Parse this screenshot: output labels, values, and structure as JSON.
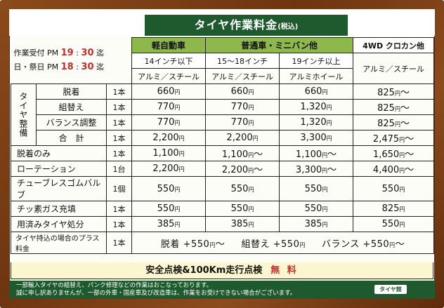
{
  "title": "タイヤ作業料金",
  "title_tax": "(税込)",
  "hours": {
    "weekday_prefix": "作業受付 PM ",
    "weekday_h": "19",
    "weekday_sep": " : ",
    "weekday_m": "30",
    "weekday_suffix": " 迄",
    "holiday_prefix": "日・祭日 PM ",
    "holiday_h": "18",
    "holiday_sep": " : ",
    "holiday_m": "30",
    "holiday_suffix": " 迄"
  },
  "columns": {
    "kei": "軽自動車",
    "futsu": "普通車・ミニバン他",
    "wd": "4WD クロカン他",
    "size_kei": "14インチ以下",
    "size_mid": "15～18インチ",
    "size_big": "19インチ以上",
    "mat_kei": "アルミ／スチール",
    "mat_mid": "アルミ／スチール",
    "mat_big": "アルミホイール",
    "mat_wd": "アルミ／スチール"
  },
  "group_label": "タイヤ整備",
  "yen": "円",
  "tilde": "～",
  "rows": [
    {
      "label": "脱着",
      "unit": "1本",
      "v": [
        "660",
        "660",
        "660",
        "825"
      ],
      "t": [
        "",
        "",
        "",
        "～"
      ]
    },
    {
      "label": "組替え",
      "unit": "1本",
      "v": [
        "770",
        "770",
        "1,320",
        "825"
      ],
      "t": [
        "",
        "",
        "",
        "～"
      ]
    },
    {
      "label": "バランス調整",
      "unit": "1本",
      "v": [
        "770",
        "770",
        "1,320",
        "825"
      ],
      "t": [
        "",
        "",
        "",
        "～"
      ]
    },
    {
      "label": "合　計",
      "unit": "1本",
      "v": [
        "2,200",
        "2,200",
        "3,300",
        "2,475"
      ],
      "t": [
        "",
        "",
        "",
        "～"
      ]
    },
    {
      "label": "脱着のみ",
      "unit": "1本",
      "v": [
        "1,100",
        "1,100",
        "1,100",
        "1,650"
      ],
      "t": [
        "",
        "～",
        "～",
        "～"
      ]
    },
    {
      "label": "ローテーション",
      "unit": "1台",
      "v": [
        "2,200",
        "2,200",
        "3,300",
        "4,400"
      ],
      "t": [
        "",
        "～",
        "～",
        "～"
      ]
    },
    {
      "label": "チューブレスゴムバルブ",
      "unit": "1個",
      "v": [
        "550",
        "550",
        "550",
        "550"
      ],
      "t": [
        "",
        "",
        "",
        ""
      ]
    },
    {
      "label": "チッ素ガス充填",
      "unit": "1本",
      "v": [
        "550",
        "550",
        "550",
        "825"
      ],
      "t": [
        "",
        "",
        "",
        ""
      ]
    },
    {
      "label": "用済みタイヤ処分",
      "unit": "1本",
      "v": [
        "385",
        "385",
        "385",
        "550"
      ],
      "t": [
        "",
        "",
        "",
        ""
      ]
    }
  ],
  "extra": {
    "label": "タイヤ持込の場合のプラス料金",
    "unit": "1本",
    "a_label": "脱着",
    "a_val": "+550",
    "b_label": "組替え",
    "b_val": "+550",
    "c_label": "バランス",
    "c_val": "+550"
  },
  "free_text": "安全点検&100Km走行点検",
  "free_label": "無 料",
  "footer_line1": "一部輸入タイヤの組替え、パンク修理などの作業はおこなっております。",
  "footer_line2": "誠に申し訳ありませんが、一部の外車・国産車及び改造車は、作業をお受けできない場合がございます。",
  "logo": "タイヤ館"
}
